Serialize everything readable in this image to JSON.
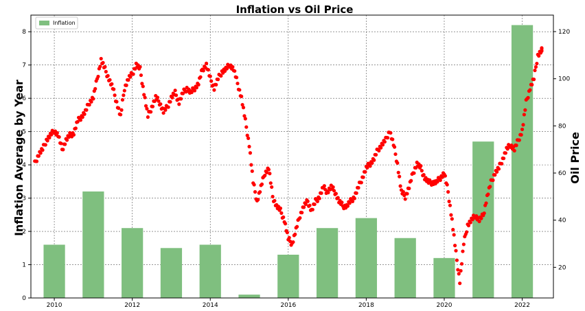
{
  "chart_data": {
    "type": "bar+scatter",
    "title": "Inflation vs Oil Price",
    "ylabel_left": "Inflation Average by Year",
    "ylabel_right": "Oil Price",
    "xlabel": "",
    "x_ticks": [
      "2010",
      "2012",
      "2014",
      "2016",
      "2018",
      "2020",
      "2022"
    ],
    "y_left_ticks": [
      "0",
      "1",
      "2",
      "3",
      "4",
      "5",
      "6",
      "7",
      "8"
    ],
    "y_right_ticks": [
      "20",
      "40",
      "60",
      "80",
      "100",
      "120"
    ],
    "ylim_left": [
      0,
      8.5
    ],
    "ylim_right": [
      7,
      127
    ],
    "xlim": [
      2009.4,
      2022.8
    ],
    "grid": true,
    "legend": {
      "position": "top-left",
      "entries": [
        "Inflation"
      ]
    },
    "bar_series": {
      "name": "Inflation",
      "color": "#7fbf7f",
      "years": [
        2010,
        2011,
        2012,
        2013,
        2014,
        2015,
        2016,
        2017,
        2018,
        2019,
        2020,
        2021,
        2022
      ],
      "values": [
        1.6,
        3.2,
        2.1,
        1.5,
        1.6,
        0.1,
        1.3,
        2.1,
        2.4,
        1.8,
        1.2,
        4.7,
        8.2
      ]
    },
    "scatter_series": {
      "color": "#ff0000",
      "x": [
        2009.5,
        2009.6,
        2009.7,
        2009.8,
        2009.9,
        2010.0,
        2010.1,
        2010.2,
        2010.3,
        2010.4,
        2010.5,
        2010.6,
        2010.7,
        2010.8,
        2010.9,
        2011.0,
        2011.1,
        2011.2,
        2011.3,
        2011.4,
        2011.5,
        2011.6,
        2011.7,
        2011.8,
        2011.9,
        2012.0,
        2012.1,
        2012.2,
        2012.3,
        2012.4,
        2012.5,
        2012.6,
        2012.7,
        2012.8,
        2012.9,
        2013.0,
        2013.1,
        2013.2,
        2013.3,
        2013.4,
        2013.5,
        2013.6,
        2013.7,
        2013.8,
        2013.9,
        2014.0,
        2014.1,
        2014.2,
        2014.3,
        2014.4,
        2014.5,
        2014.6,
        2014.7,
        2014.8,
        2014.9,
        2015.0,
        2015.1,
        2015.2,
        2015.3,
        2015.4,
        2015.5,
        2015.6,
        2015.7,
        2015.8,
        2015.9,
        2016.0,
        2016.1,
        2016.2,
        2016.3,
        2016.4,
        2016.5,
        2016.6,
        2016.7,
        2016.8,
        2016.9,
        2017.0,
        2017.1,
        2017.2,
        2017.3,
        2017.4,
        2017.5,
        2017.6,
        2017.7,
        2017.8,
        2017.9,
        2018.0,
        2018.1,
        2018.2,
        2018.3,
        2018.4,
        2018.5,
        2018.6,
        2018.7,
        2018.8,
        2018.9,
        2019.0,
        2019.1,
        2019.2,
        2019.3,
        2019.4,
        2019.5,
        2019.6,
        2019.7,
        2019.8,
        2019.9,
        2020.0,
        2020.1,
        2020.2,
        2020.3,
        2020.4,
        2020.5,
        2020.6,
        2020.7,
        2020.8,
        2020.9,
        2021.0,
        2021.1,
        2021.2,
        2021.3,
        2021.4,
        2021.5,
        2021.6,
        2021.7,
        2021.8,
        2021.9,
        2022.0,
        2022.1,
        2022.2,
        2022.3,
        2022.4,
        2022.5
      ],
      "y": [
        64,
        68,
        70,
        74,
        76,
        78,
        76,
        70,
        74,
        76,
        77,
        82,
        84,
        86,
        90,
        92,
        100,
        108,
        104,
        100,
        96,
        90,
        84,
        96,
        100,
        102,
        106,
        104,
        94,
        84,
        88,
        92,
        90,
        86,
        88,
        92,
        94,
        90,
        94,
        96,
        94,
        96,
        98,
        104,
        106,
        100,
        96,
        100,
        103,
        104,
        106,
        104,
        98,
        92,
        82,
        72,
        56,
        48,
        54,
        60,
        62,
        50,
        46,
        44,
        40,
        32,
        30,
        36,
        42,
        46,
        48,
        44,
        48,
        50,
        54,
        52,
        54,
        52,
        48,
        46,
        46,
        48,
        50,
        54,
        58,
        62,
        64,
        66,
        70,
        72,
        74,
        78,
        72,
        64,
        52,
        50,
        54,
        60,
        64,
        62,
        58,
        56,
        56,
        56,
        58,
        60,
        52,
        40,
        26,
        14,
        30,
        38,
        40,
        42,
        40,
        42,
        50,
        56,
        60,
        62,
        66,
        70,
        72,
        70,
        74,
        78,
        90,
        96,
        100,
        110,
        112
      ]
    }
  }
}
